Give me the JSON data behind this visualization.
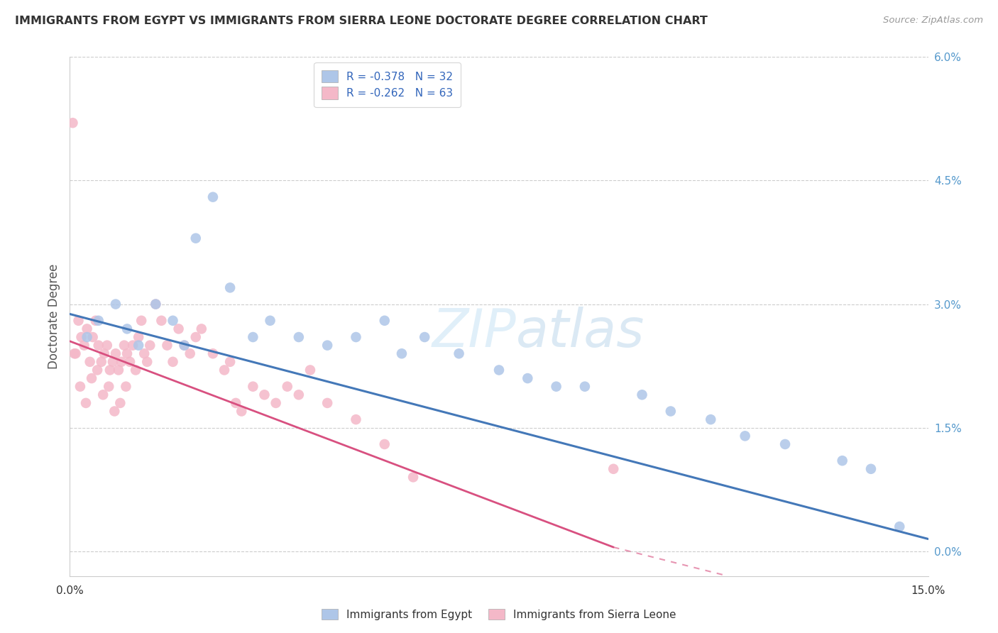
{
  "title": "IMMIGRANTS FROM EGYPT VS IMMIGRANTS FROM SIERRA LEONE DOCTORATE DEGREE CORRELATION CHART",
  "source": "Source: ZipAtlas.com",
  "ylabel": "Doctorate Degree",
  "ytick_values": [
    0.0,
    1.5,
    3.0,
    4.5,
    6.0
  ],
  "xmin": 0.0,
  "xmax": 15.0,
  "ymin": -0.3,
  "ymax": 6.0,
  "yplot_min": 0.0,
  "legend_entry1": "R = -0.378   N = 32",
  "legend_entry2": "R = -0.262   N = 63",
  "legend_label1": "Immigrants from Egypt",
  "legend_label2": "Immigrants from Sierra Leone",
  "color_egypt": "#aec6e8",
  "color_sierra": "#f4b8c8",
  "color_egypt_line": "#4478b8",
  "color_sierra_line": "#d85080",
  "egypt_x": [
    0.3,
    0.5,
    0.8,
    1.0,
    1.2,
    1.5,
    1.8,
    2.0,
    2.2,
    2.5,
    2.8,
    3.2,
    3.5,
    4.0,
    4.5,
    5.0,
    5.5,
    5.8,
    6.2,
    6.8,
    7.5,
    8.0,
    8.5,
    9.0,
    10.0,
    10.5,
    11.2,
    11.8,
    12.5,
    13.5,
    14.0,
    14.5
  ],
  "egypt_y": [
    2.6,
    2.8,
    3.0,
    2.7,
    2.5,
    3.0,
    2.8,
    2.5,
    3.8,
    4.3,
    3.2,
    2.6,
    2.8,
    2.6,
    2.5,
    2.6,
    2.8,
    2.4,
    2.6,
    2.4,
    2.2,
    2.1,
    2.0,
    2.0,
    1.9,
    1.7,
    1.6,
    1.4,
    1.3,
    1.1,
    1.0,
    0.3
  ],
  "sierra_x": [
    0.05,
    0.1,
    0.15,
    0.2,
    0.25,
    0.3,
    0.35,
    0.4,
    0.45,
    0.5,
    0.55,
    0.6,
    0.65,
    0.7,
    0.75,
    0.8,
    0.85,
    0.9,
    0.95,
    1.0,
    1.05,
    1.1,
    1.15,
    1.2,
    1.25,
    1.3,
    1.35,
    1.4,
    1.5,
    1.6,
    1.7,
    1.8,
    1.9,
    2.0,
    2.1,
    2.2,
    2.3,
    2.5,
    2.7,
    2.8,
    2.9,
    3.0,
    3.2,
    3.4,
    3.6,
    3.8,
    4.0,
    4.2,
    4.5,
    5.0,
    5.5,
    6.0,
    0.08,
    0.18,
    0.28,
    0.38,
    0.48,
    0.58,
    0.68,
    0.78,
    0.88,
    0.98,
    9.5
  ],
  "sierra_y": [
    5.2,
    2.4,
    2.8,
    2.6,
    2.5,
    2.7,
    2.3,
    2.6,
    2.8,
    2.5,
    2.3,
    2.4,
    2.5,
    2.2,
    2.3,
    2.4,
    2.2,
    2.3,
    2.5,
    2.4,
    2.3,
    2.5,
    2.2,
    2.6,
    2.8,
    2.4,
    2.3,
    2.5,
    3.0,
    2.8,
    2.5,
    2.3,
    2.7,
    2.5,
    2.4,
    2.6,
    2.7,
    2.4,
    2.2,
    2.3,
    1.8,
    1.7,
    2.0,
    1.9,
    1.8,
    2.0,
    1.9,
    2.2,
    1.8,
    1.6,
    1.3,
    0.9,
    2.4,
    2.0,
    1.8,
    2.1,
    2.2,
    1.9,
    2.0,
    1.7,
    1.8,
    2.0,
    1.0
  ],
  "egypt_line_x0": 0.0,
  "egypt_line_y0": 2.88,
  "egypt_line_x1": 15.0,
  "egypt_line_y1": 0.15,
  "sierra_line_x0": 0.0,
  "sierra_line_y0": 2.55,
  "sierra_line_x1": 9.5,
  "sierra_line_y1": 0.05,
  "sierra_dashed_x0": 9.5,
  "sierra_dashed_y0": 0.05,
  "sierra_dashed_x1": 11.5,
  "sierra_dashed_y1": -0.3
}
